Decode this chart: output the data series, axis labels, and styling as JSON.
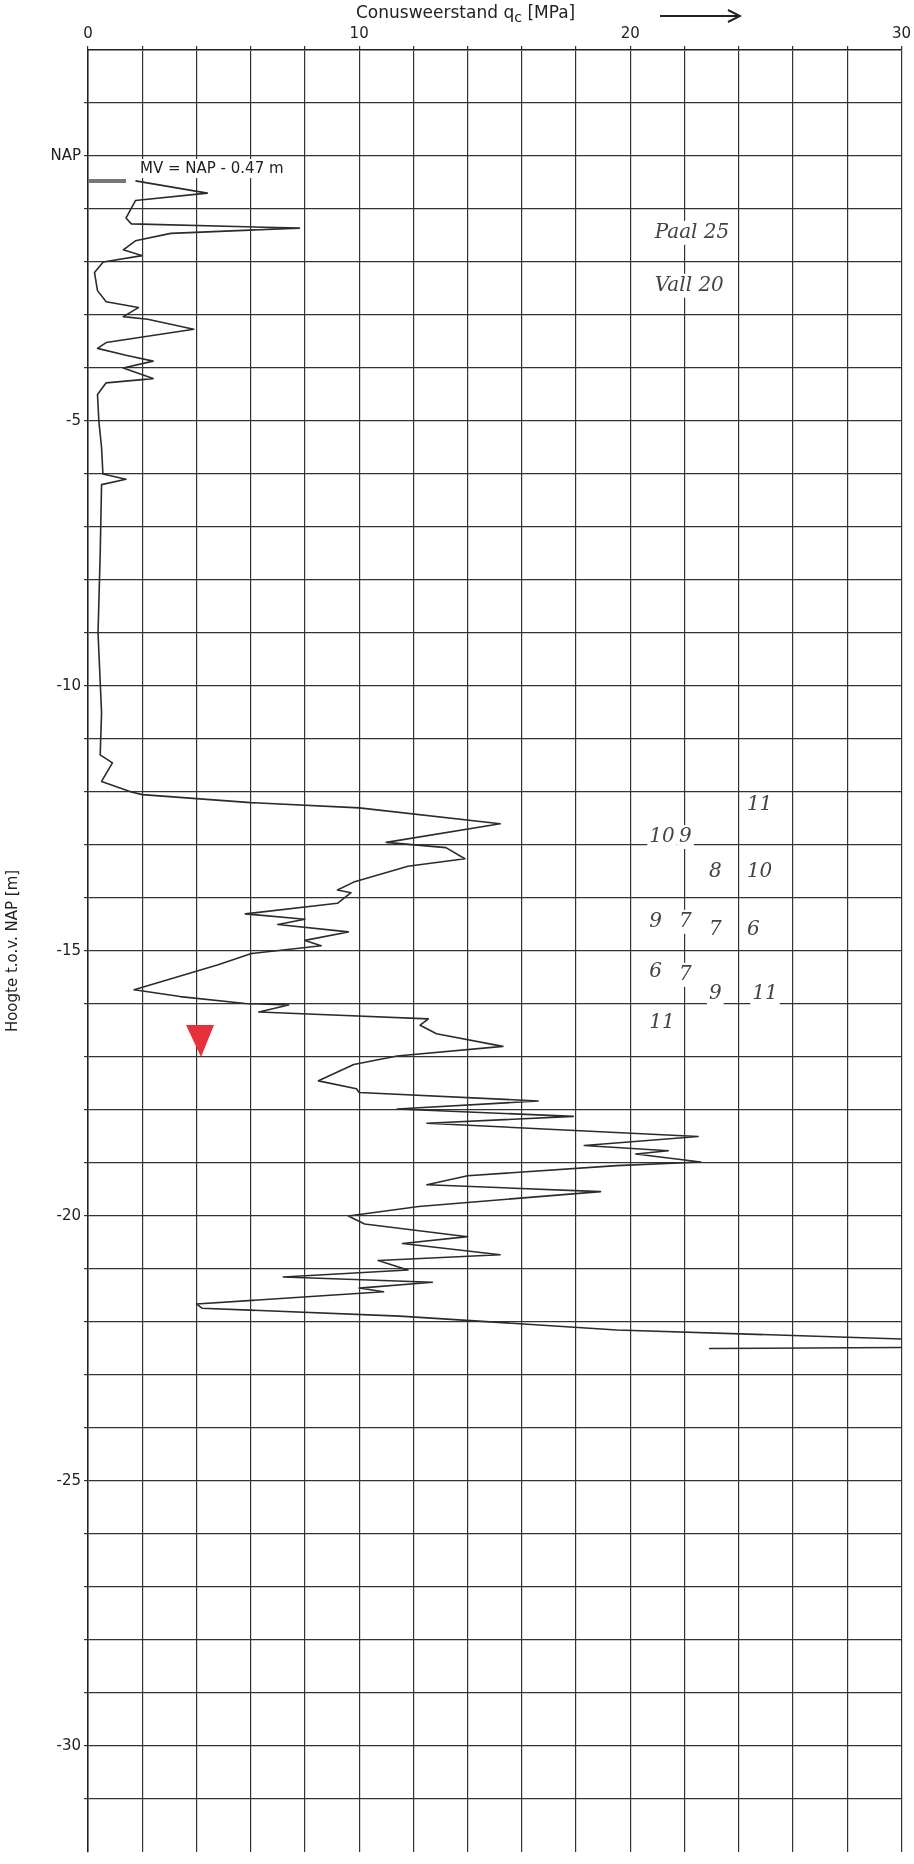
{
  "chart_data": {
    "type": "line",
    "xlabel": "Conusweerstand q$_{c}$ [MPa]",
    "ylabel": "Hoogte t.o.v. NAP [m]",
    "xlim": [
      0,
      30
    ],
    "xticks": [
      0,
      {
        "value": 2,
        "label": null
      },
      {
        "value": 4,
        "label": null
      },
      {
        "value": 6,
        "label": null
      },
      {
        "value": 8,
        "label": null
      },
      10,
      {
        "value": 12,
        "label": null
      },
      {
        "value": 14,
        "label": null
      },
      {
        "value": 16,
        "label": null
      },
      {
        "value": 18,
        "label": null
      },
      20,
      {
        "value": 22,
        "label": null
      },
      {
        "value": 24,
        "label": null
      },
      {
        "value": 26,
        "label": null
      },
      {
        "value": 28,
        "label": null
      },
      30
    ],
    "ylim": [
      -32,
      2
    ],
    "yticks": [
      {
        "value": 1,
        "label": null
      },
      {
        "value": 0,
        "label": "NAP"
      },
      {
        "value": -1,
        "label": null
      },
      {
        "value": -2,
        "label": null
      },
      {
        "value": -3,
        "label": null
      },
      {
        "value": -4,
        "label": null
      },
      -5,
      {
        "value": -6,
        "label": null
      },
      {
        "value": -7,
        "label": null
      },
      {
        "value": -8,
        "label": null
      },
      {
        "value": -9,
        "label": null
      },
      -10,
      {
        "value": -11,
        "label": null
      },
      {
        "value": -12,
        "label": null
      },
      {
        "value": -13,
        "label": null
      },
      {
        "value": -14,
        "label": null
      },
      -15,
      {
        "value": -16,
        "label": null
      },
      {
        "value": -17,
        "label": null
      },
      {
        "value": -18,
        "label": null
      },
      {
        "value": -19,
        "label": null
      },
      -20,
      {
        "value": -21,
        "label": null
      },
      {
        "value": -22,
        "label": null
      },
      {
        "value": -23,
        "label": null
      },
      {
        "value": -24,
        "label": null
      },
      -25,
      {
        "value": -26,
        "label": null
      },
      {
        "value": -27,
        "label": null
      },
      {
        "value": -28,
        "label": null
      },
      {
        "value": -29,
        "label": null
      },
      -30,
      {
        "value": -31,
        "label": null
      }
    ],
    "grid": true,
    "legend": false,
    "marker": "none",
    "line_style": "solid",
    "ref_lines": [
      {
        "axis": "y",
        "value": -0.47,
        "label": "MV = NAP - 0.47 m"
      }
    ],
    "annotations": [
      "Paal 25",
      "Vall 20",
      "11",
      "10",
      "9",
      "8",
      "10",
      "9",
      "7",
      "7",
      "6",
      "6",
      "7",
      "9",
      "11",
      "11"
    ],
    "series": [
      {
        "color": "#2b2b2b",
        "x": [
          1.75,
          4.4,
          1.75,
          1.4,
          1.6,
          7.8,
          3.05,
          1.75,
          1.3,
          2.0,
          0.56,
          0.24,
          0.35,
          0.67,
          1.86,
          1.3,
          2.2,
          3.9,
          0.67,
          0.35,
          1.4,
          2.4,
          1.3,
          2.4,
          0.67,
          0.35,
          0.4,
          0.5,
          0.55,
          1.4,
          0.5,
          0.45,
          0.37,
          0.5,
          0.45,
          0.9,
          0.5,
          1.6,
          2.0,
          6.0,
          10.0,
          15.2,
          11.0,
          13.2,
          13.9,
          11.8,
          9.8,
          9.2,
          9.7,
          9.2,
          5.8,
          8.0,
          7.0,
          9.6,
          8.0,
          8.6,
          6.0,
          4.8,
          1.7,
          3.4,
          5.8,
          7.4,
          6.3,
          12.55,
          12.25,
          12.85,
          15.3,
          11.4,
          9.8,
          8.5,
          9.9,
          10.0,
          16.6,
          11.4,
          17.9,
          12.5,
          22.5,
          18.3,
          21.4,
          20.2,
          22.6,
          19.5,
          14.0,
          12.5,
          18.9,
          12.2,
          9.6,
          10.2,
          14.0,
          11.6,
          15.2,
          10.7,
          11.8,
          7.2,
          12.7,
          10.0,
          10.9,
          4.0,
          4.2,
          11.5,
          19.5,
          30.0,
          null,
          22.9,
          30.0
        ],
        "values": [
          -0.47,
          -0.7,
          -0.84,
          -1.17,
          -1.28,
          -1.36,
          -1.46,
          -1.6,
          -1.77,
          -1.88,
          -2.0,
          -2.2,
          -2.54,
          -2.75,
          -2.86,
          -3.03,
          -3.08,
          -3.27,
          -3.52,
          -3.63,
          -3.76,
          -3.87,
          -4.0,
          -4.2,
          -4.28,
          -4.5,
          -5.0,
          -5.5,
          -6.0,
          -6.1,
          -6.2,
          -7.5,
          -9.0,
          -10.5,
          -11.3,
          -11.45,
          -11.8,
          -12.0,
          -12.05,
          -12.2,
          -12.3,
          -12.6,
          -12.95,
          -13.05,
          -13.26,
          -13.4,
          -13.7,
          -13.85,
          -13.9,
          -14.1,
          -14.3,
          -14.4,
          -14.5,
          -14.64,
          -14.8,
          -14.9,
          -15.05,
          -15.26,
          -15.73,
          -15.86,
          -15.99,
          -16.02,
          -16.15,
          -16.28,
          -16.4,
          -16.56,
          -16.8,
          -16.98,
          -17.14,
          -17.45,
          -17.6,
          -17.67,
          -17.83,
          -17.98,
          -18.12,
          -18.25,
          -18.5,
          -18.67,
          -18.77,
          -18.83,
          -18.98,
          -19.05,
          -19.24,
          -19.41,
          -19.54,
          -19.82,
          -20.0,
          -20.15,
          -20.39,
          -20.52,
          -20.73,
          -20.84,
          -21.02,
          -21.15,
          -21.25,
          -21.36,
          -21.43,
          -21.66,
          -21.74,
          -21.89,
          -22.15,
          -22.32,
          null,
          -22.5,
          -22.48
        ]
      }
    ]
  }
}
